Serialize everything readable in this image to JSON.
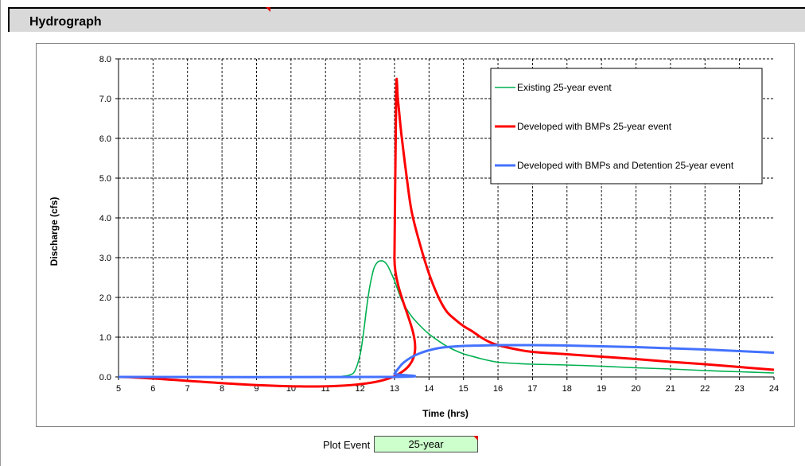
{
  "sheet": {
    "title": "Hydrograph",
    "marker_color": "#e00000"
  },
  "controls": {
    "plot_event_label": "Plot Event",
    "plot_event_value": "25-year",
    "field_color": "#ccffcc"
  },
  "chart_data": {
    "type": "line",
    "title": "",
    "xlabel": "Time (hrs)",
    "ylabel": "Discharge (cfs)",
    "xlim": [
      5,
      24
    ],
    "ylim": [
      0,
      8
    ],
    "xticks": [
      5,
      6,
      7,
      8,
      9,
      10,
      11,
      12,
      13,
      14,
      15,
      16,
      17,
      18,
      19,
      20,
      21,
      22,
      23,
      24
    ],
    "yticks": [
      0,
      1,
      2,
      3,
      4,
      5,
      6,
      7,
      8
    ],
    "ytick_labels": [
      "0.0",
      "1.0",
      "2.0",
      "3.0",
      "4.0",
      "5.0",
      "6.0",
      "7.0",
      "8.0"
    ],
    "grid": true,
    "legend_position": "top-right",
    "series": [
      {
        "name": "Existing 25-year event",
        "color": "#00b050",
        "x": [
          5,
          11.0,
          11.5,
          11.7,
          11.85,
          12.0,
          12.1,
          12.2,
          12.3,
          12.4,
          12.5,
          12.6,
          12.7,
          12.8,
          12.9,
          13.0,
          13.1,
          13.2,
          13.3,
          13.5,
          13.75,
          14.0,
          14.25,
          14.5,
          14.75,
          15.0,
          15.25,
          15.5,
          15.75,
          16.0,
          16.5,
          17.0,
          18.0,
          19.0,
          20.0,
          21.0,
          22.0,
          23.0,
          24.0
        ],
        "y": [
          0,
          0,
          0.02,
          0.05,
          0.15,
          0.55,
          1.1,
          1.8,
          2.35,
          2.72,
          2.88,
          2.92,
          2.9,
          2.8,
          2.62,
          2.42,
          2.18,
          1.95,
          1.78,
          1.52,
          1.28,
          1.08,
          0.92,
          0.78,
          0.67,
          0.58,
          0.52,
          0.46,
          0.41,
          0.37,
          0.34,
          0.32,
          0.3,
          0.27,
          0.23,
          0.2,
          0.16,
          0.13,
          0.1
        ]
      },
      {
        "name": "Developed with BMPs 25-year event",
        "color": "#ff0000",
        "x": [
          5,
          12.95,
          13.0,
          13.05,
          13.1,
          13.2,
          13.35,
          13.5,
          13.75,
          14.0,
          14.25,
          14.5,
          14.75,
          15.0,
          15.25,
          15.5,
          15.75,
          16.0,
          16.5,
          17.0,
          18.0,
          19.0,
          20.0,
          21.0,
          22.0,
          23.0,
          24.0
        ],
        "y": [
          0,
          0,
          3.0,
          7.2,
          6.95,
          6.1,
          5.05,
          4.15,
          3.3,
          2.6,
          2.05,
          1.66,
          1.45,
          1.28,
          1.15,
          1.0,
          0.88,
          0.8,
          0.7,
          0.63,
          0.57,
          0.51,
          0.45,
          0.38,
          0.32,
          0.25,
          0.18
        ]
      },
      {
        "name": "Developed with BMPs and Detention 25-year event",
        "color": "#4472ff",
        "x": [
          5,
          12.95,
          13.0,
          13.1,
          13.25,
          13.5,
          13.75,
          14.0,
          14.25,
          14.5,
          15.0,
          15.5,
          16.0,
          16.5,
          17.0,
          18.0,
          19.0,
          20.0,
          21.0,
          22.0,
          23.0,
          24.0
        ],
        "y": [
          0,
          0,
          0.08,
          0.2,
          0.35,
          0.5,
          0.6,
          0.67,
          0.72,
          0.75,
          0.78,
          0.79,
          0.8,
          0.8,
          0.8,
          0.79,
          0.77,
          0.75,
          0.72,
          0.69,
          0.65,
          0.61
        ]
      }
    ]
  }
}
